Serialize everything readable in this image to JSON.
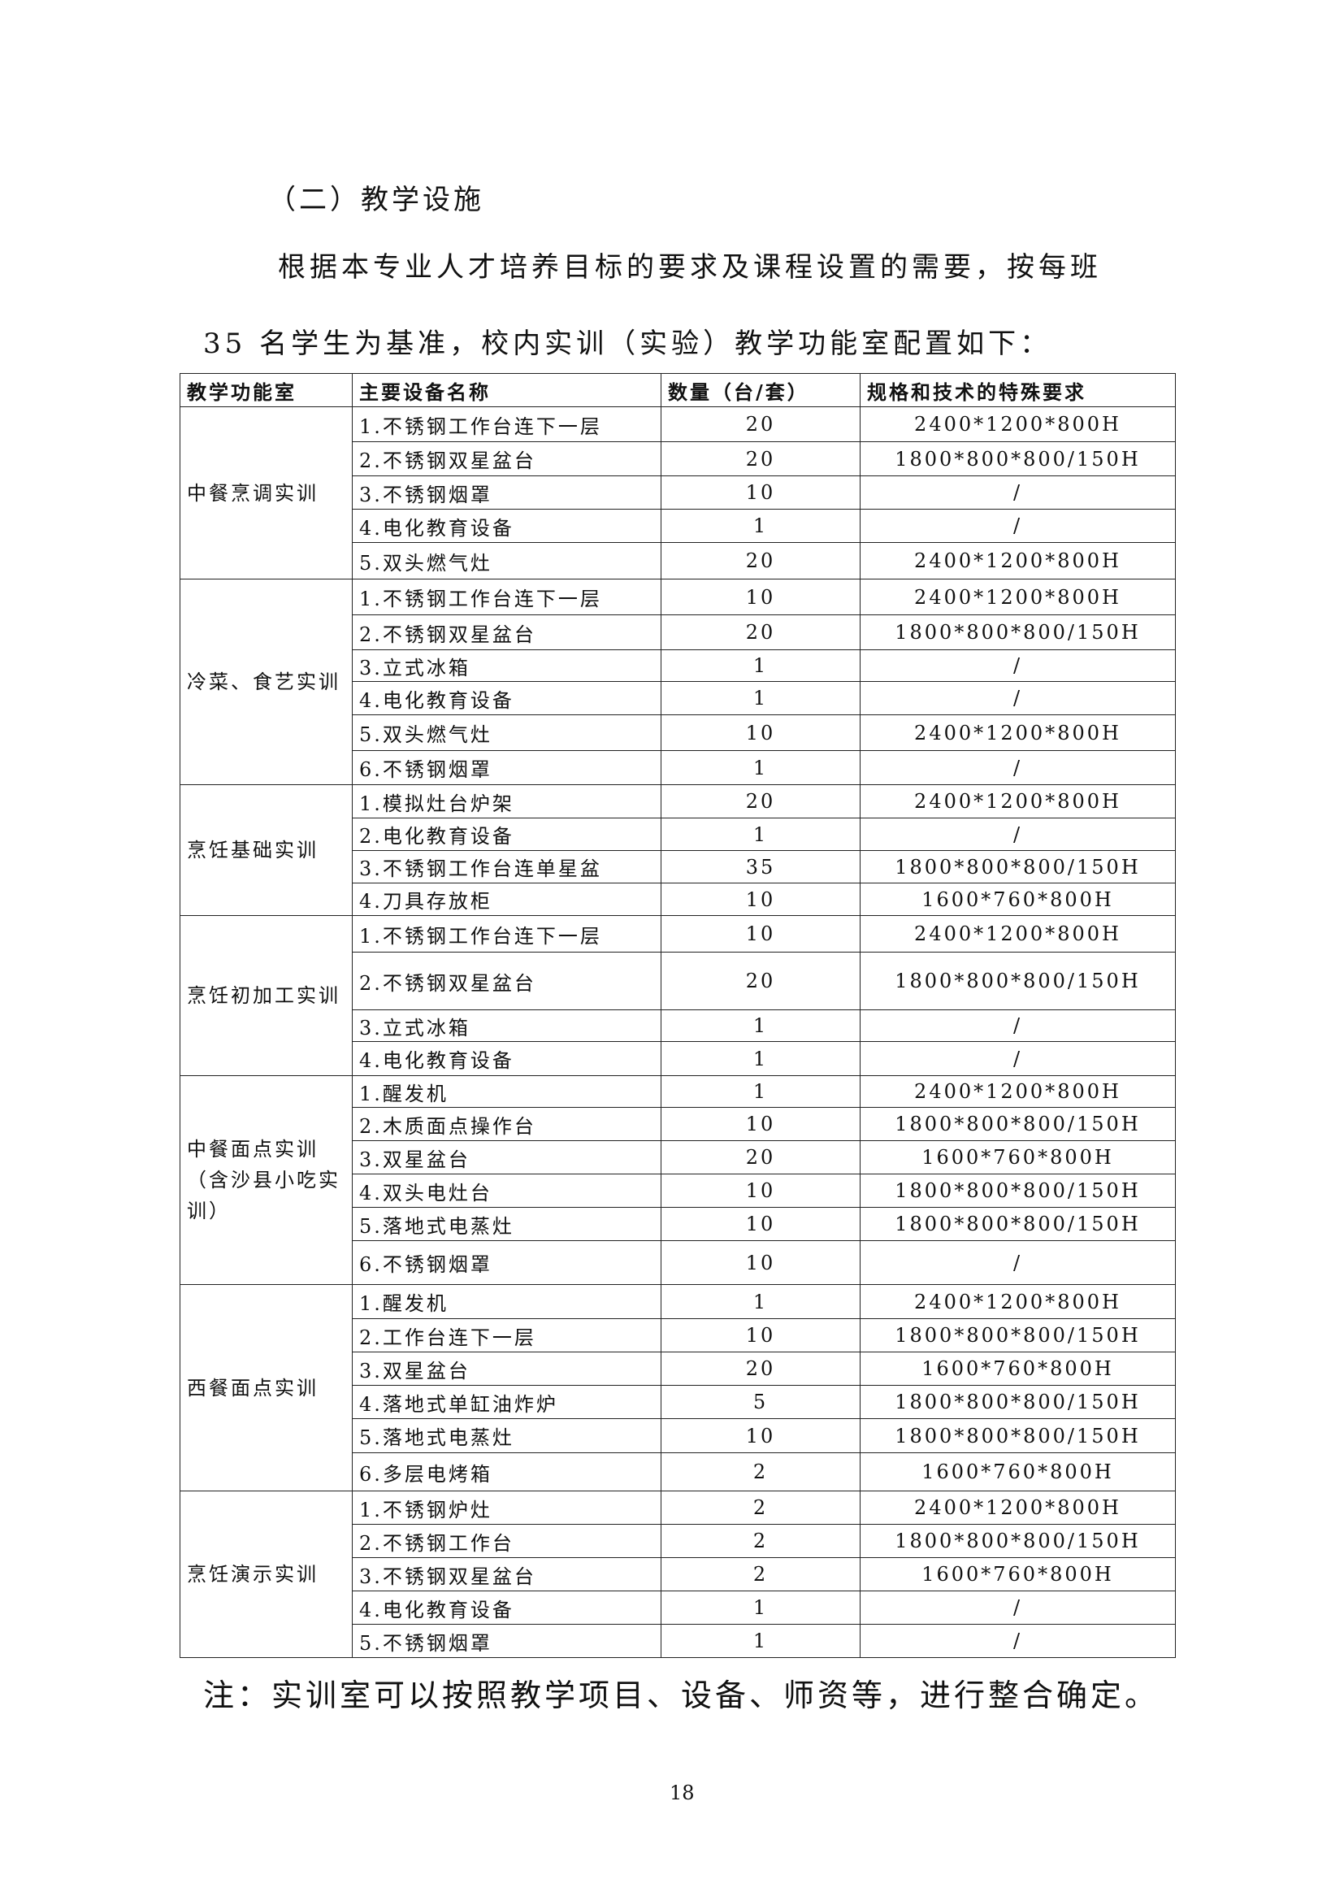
{
  "heading": "（二）教学设施",
  "intro": "根据本专业人才培养目标的要求及课程设置的需要，按每班 35 名学生为基准，校内实训（实验）教学功能室配置如下：",
  "table": {
    "headers": [
      "教学功能室",
      "主要设备名称",
      "数量（台/套）",
      "规格和技术的特殊要求"
    ],
    "groups": [
      {
        "room": "中餐烹调实训",
        "rows": [
          [
            "1.不锈钢工作台连下一层",
            "20",
            "2400*1200*800H"
          ],
          [
            "2.不锈钢双星盆台",
            "20",
            "1800*800*800/150H"
          ],
          [
            "3.不锈钢烟罩",
            "10",
            "/"
          ],
          [
            "4.电化教育设备",
            "1",
            "/"
          ],
          [
            "5.双头燃气灶",
            "20",
            "2400*1200*800H"
          ]
        ]
      },
      {
        "room": "冷菜、食艺实训",
        "rows": [
          [
            "1.不锈钢工作台连下一层",
            "10",
            "2400*1200*800H"
          ],
          [
            "2.不锈钢双星盆台",
            "20",
            "1800*800*800/150H"
          ],
          [
            "3.立式冰箱",
            "1",
            "/"
          ],
          [
            "4.电化教育设备",
            "1",
            "/"
          ],
          [
            "5.双头燃气灶",
            "10",
            "2400*1200*800H"
          ],
          [
            "6.不锈钢烟罩",
            "1",
            "/"
          ]
        ]
      },
      {
        "room": "烹饪基础实训",
        "rows": [
          [
            "1.模拟灶台炉架",
            "20",
            "2400*1200*800H"
          ],
          [
            "2.电化教育设备",
            "1",
            "/"
          ],
          [
            "3.不锈钢工作台连单星盆",
            "35",
            "1800*800*800/150H"
          ],
          [
            "4.刀具存放柜",
            "10",
            "1600*760*800H"
          ]
        ]
      },
      {
        "room": "烹饪初加工实训",
        "rows": [
          [
            "1.不锈钢工作台连下一层",
            "10",
            "2400*1200*800H"
          ],
          [
            "2.不锈钢双星盆台",
            "20",
            "1800*800*800/150H"
          ],
          [
            "3.立式冰箱",
            "1",
            "/"
          ],
          [
            "4.电化教育设备",
            "1",
            "/"
          ]
        ]
      },
      {
        "room": "中餐面点实训（含沙县小吃实训）",
        "rows": [
          [
            "1.醒发机",
            "1",
            "2400*1200*800H"
          ],
          [
            "2.木质面点操作台",
            "10",
            "1800*800*800/150H"
          ],
          [
            "3.双星盆台",
            "20",
            "1600*760*800H"
          ],
          [
            "4.双头电灶台",
            "10",
            "1800*800*800/150H"
          ],
          [
            "5.落地式电蒸灶",
            "10",
            "1800*800*800/150H"
          ],
          [
            "6.不锈钢烟罩",
            "10",
            "/"
          ]
        ]
      },
      {
        "room": "西餐面点实训",
        "rows": [
          [
            "1.醒发机",
            "1",
            "2400*1200*800H"
          ],
          [
            "2.工作台连下一层",
            "10",
            "1800*800*800/150H"
          ],
          [
            "3.双星盆台",
            "20",
            "1600*760*800H"
          ],
          [
            "4.落地式单缸油炸炉",
            "5",
            "1800*800*800/150H"
          ],
          [
            "5.落地式电蒸灶",
            "10",
            "1800*800*800/150H"
          ],
          [
            "6.多层电烤箱",
            "2",
            "1600*760*800H"
          ]
        ]
      },
      {
        "room": "烹饪演示实训",
        "rows": [
          [
            "1.不锈钢炉灶",
            "2",
            "2400*1200*800H"
          ],
          [
            "2.不锈钢工作台",
            "2",
            "1800*800*800/150H"
          ],
          [
            "3.不锈钢双星盆台",
            "2",
            "1600*760*800H"
          ],
          [
            "4.电化教育设备",
            "1",
            "/"
          ],
          [
            "5.不锈钢烟罩",
            "1",
            "/"
          ]
        ]
      }
    ]
  },
  "note": "注：实训室可以按照教学项目、设备、师资等，进行整合确定。",
  "page_number": "18"
}
